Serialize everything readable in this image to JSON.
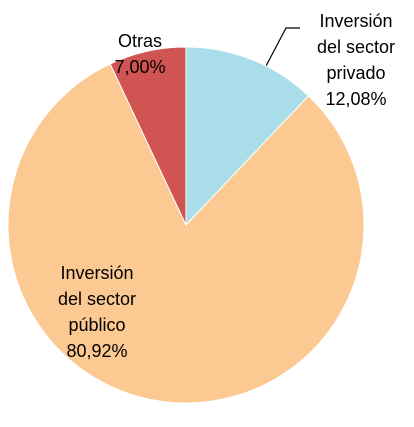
{
  "chart_data": {
    "type": "pie",
    "categories": [
      [
        "Inversión",
        "del sector",
        "privado"
      ],
      [
        "Inversión",
        "del sector",
        "público"
      ],
      [
        "Otras"
      ]
    ],
    "values": [
      12.08,
      80.92,
      7.0
    ],
    "value_labels": [
      "12,08%",
      "80,92%",
      "7,00%"
    ],
    "colors": [
      "#a9dde9",
      "#fbc991",
      "#cf5452"
    ]
  }
}
